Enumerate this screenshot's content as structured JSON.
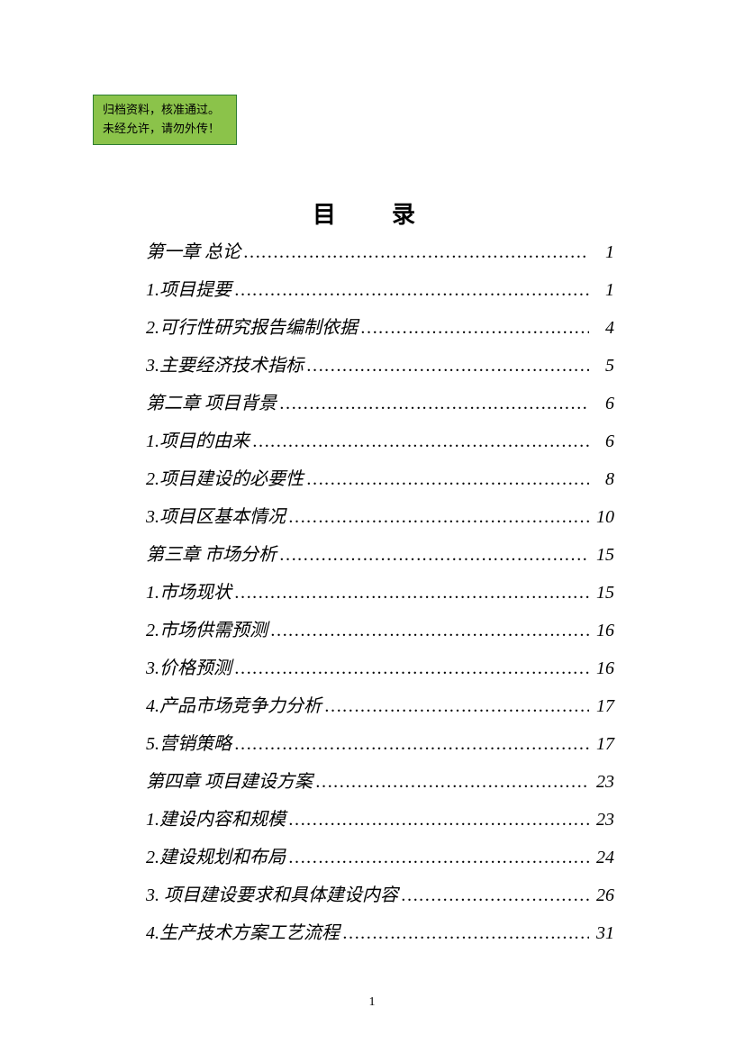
{
  "stamp": {
    "line1": "归档资料，核准通过。",
    "line2": "未经允许，请勿外传！",
    "bg_color": "#8bc34a",
    "border_color": "#2e7d32"
  },
  "title": "目　录",
  "page_number": "1",
  "toc": [
    {
      "label": "第一章 总论",
      "page": "1"
    },
    {
      "label": "1.项目提要",
      "page": "1"
    },
    {
      "label": "2.可行性研究报告编制依据",
      "page": "4"
    },
    {
      "label": "3.主要经济技术指标",
      "page": "5"
    },
    {
      "label": " 第二章 项目背景",
      "page": "6"
    },
    {
      "label": "1.项目的由来",
      "page": "6"
    },
    {
      "label": "2.项目建设的必要性",
      "page": "8"
    },
    {
      "label": "3.项目区基本情况",
      "page": "10"
    },
    {
      "label": "第三章 市场分析",
      "page": "15"
    },
    {
      "label": "1.市场现状",
      "page": "15"
    },
    {
      "label": "2.市场供需预测",
      "page": "16"
    },
    {
      "label": "3.价格预测",
      "page": "16"
    },
    {
      "label": "4.产品市场竞争力分析",
      "page": "17"
    },
    {
      "label": "5.营销策略",
      "page": "17"
    },
    {
      "label": " 第四章 项目建设方案",
      "page": "23"
    },
    {
      "label": "1.建设内容和规模",
      "page": "23"
    },
    {
      "label": "2.建设规划和布局",
      "page": "24"
    },
    {
      "label": "3. 项目建设要求和具体建设内容",
      "page": "26"
    },
    {
      "label": "4.生产技术方案工艺流程",
      "page": "31"
    }
  ],
  "style": {
    "font_family": "KaiTi",
    "font_size_body": 20,
    "font_size_title": 26,
    "line_height": 42,
    "text_color": "#000000",
    "background_color": "#ffffff",
    "dot_char": "…"
  }
}
